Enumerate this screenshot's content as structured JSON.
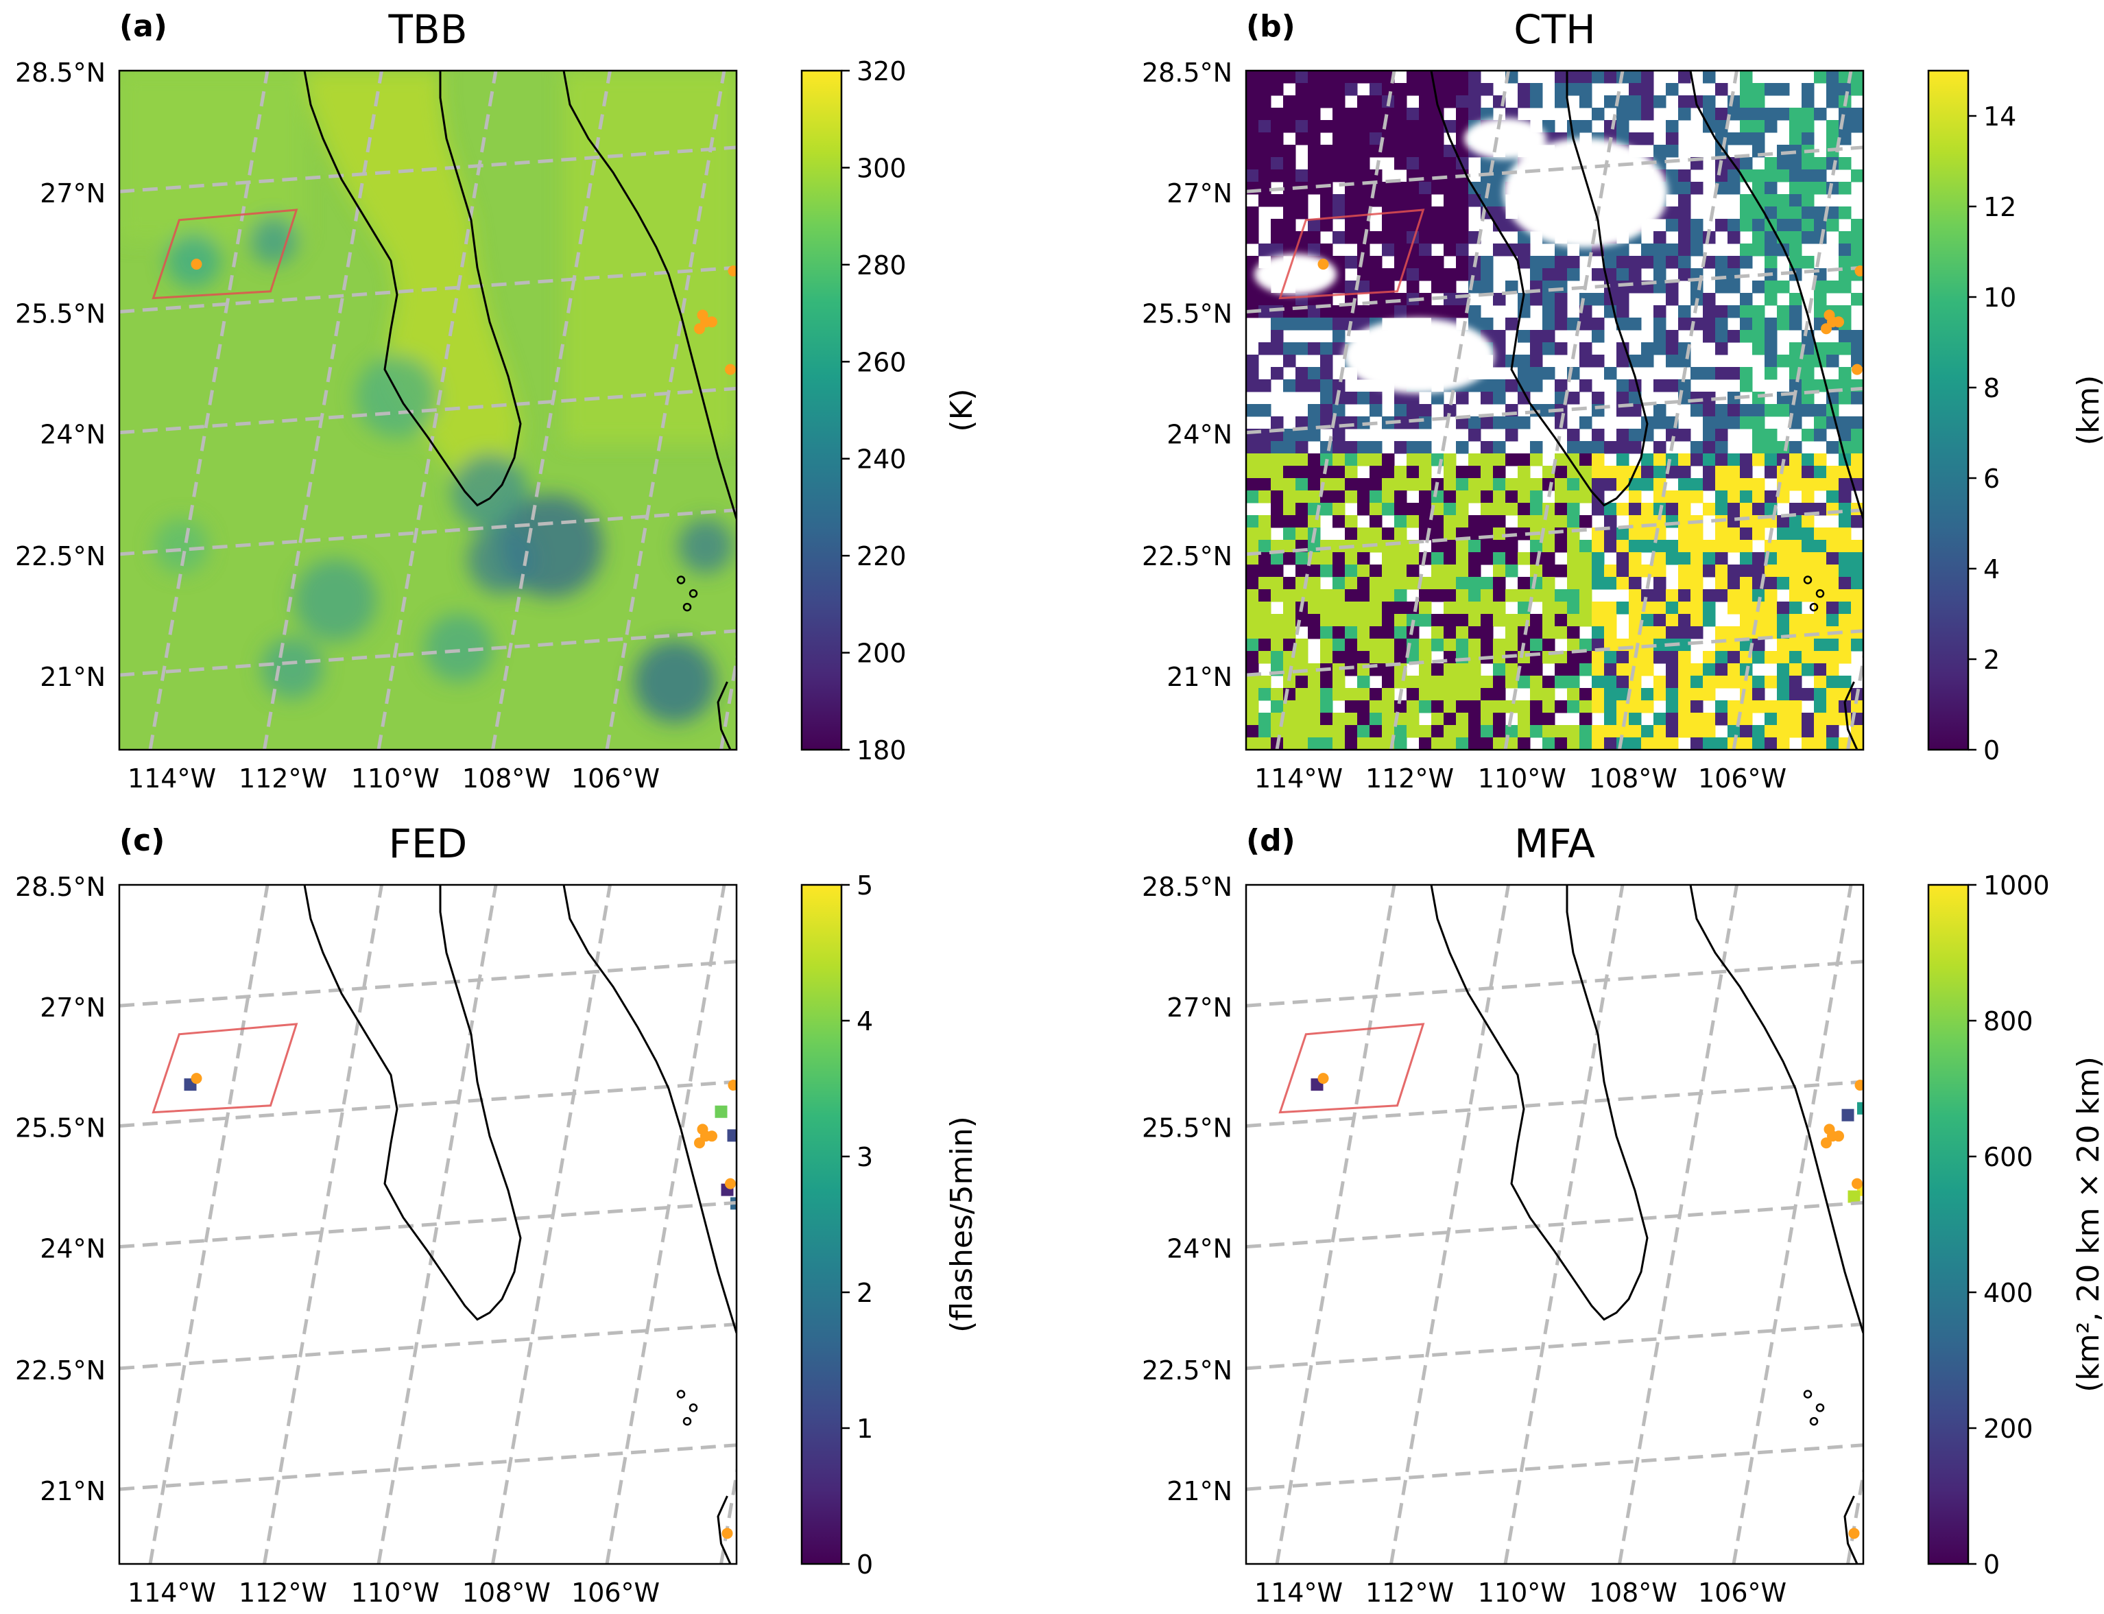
{
  "figure": {
    "panels": [
      {
        "id": "a",
        "label": "(a)",
        "title": "TBB",
        "cbar_unit": "(K)",
        "cbar_ticks": [
          "180",
          "200",
          "220",
          "240",
          "260",
          "280",
          "300",
          "320"
        ],
        "style": "tbb"
      },
      {
        "id": "b",
        "label": "(b)",
        "title": "CTH",
        "cbar_unit": "(km)",
        "cbar_ticks": [
          "0",
          "2",
          "4",
          "6",
          "8",
          "10",
          "12",
          "14"
        ],
        "style": "cth"
      },
      {
        "id": "c",
        "label": "(c)",
        "title": "FED",
        "cbar_unit": "(flashes/5min)",
        "cbar_ticks": [
          "0",
          "1",
          "2",
          "3",
          "4",
          "5"
        ],
        "style": "fed"
      },
      {
        "id": "d",
        "label": "(d)",
        "title": "MFA",
        "cbar_unit": "(km², 20 km × 20 km)",
        "cbar_ticks": [
          "0",
          "200",
          "400",
          "600",
          "800",
          "1000"
        ],
        "style": "mfa"
      }
    ],
    "lat_labels": [
      "28.5°N",
      "27°N",
      "25.5°N",
      "24°N",
      "22.5°N",
      "21°N"
    ],
    "lon_labels": [
      "114°W",
      "112°W",
      "110°W",
      "108°W",
      "106°W"
    ],
    "colors": {
      "viridis": [
        "#440154",
        "#482878",
        "#3e4989",
        "#31688e",
        "#26828e",
        "#1f9e89",
        "#35b779",
        "#6ece58",
        "#b5de2b",
        "#fde725"
      ],
      "box": "#e05050",
      "points": "#ff9f1c",
      "grid": "#bbbbbb"
    }
  },
  "chart_data": [
    {
      "type": "heatmap",
      "panel": "a",
      "title": "TBB",
      "colorbar_label": "(K)",
      "colorbar_range": [
        180,
        320
      ],
      "xlabel": "",
      "ylabel": "",
      "x_ticks": [
        "114°W",
        "112°W",
        "110°W",
        "108°W",
        "106°W"
      ],
      "y_ticks": [
        "28.5°N",
        "27°N",
        "25.5°N",
        "24°N",
        "22.5°N",
        "21°N"
      ],
      "extent": {
        "lon": [
          -114.5,
          -105.4
        ],
        "lat": [
          20,
          28.5
        ]
      },
      "grid": true
    },
    {
      "type": "heatmap",
      "panel": "b",
      "title": "CTH",
      "colorbar_label": "(km)",
      "colorbar_range": [
        0,
        15
      ],
      "xlabel": "",
      "ylabel": "",
      "x_ticks": [
        "114°W",
        "112°W",
        "110°W",
        "108°W",
        "106°W"
      ],
      "y_ticks": [
        "28.5°N",
        "27°N",
        "25.5°N",
        "24°N",
        "22.5°N",
        "21°N"
      ],
      "extent": {
        "lon": [
          -114.5,
          -105.4
        ],
        "lat": [
          20,
          28.5
        ]
      },
      "grid": true
    },
    {
      "type": "heatmap",
      "panel": "c",
      "title": "FED",
      "colorbar_label": "(flashes/5min)",
      "colorbar_range": [
        0,
        5
      ],
      "xlabel": "",
      "ylabel": "",
      "x_ticks": [
        "114°W",
        "112°W",
        "110°W",
        "108°W",
        "106°W"
      ],
      "y_ticks": [
        "28.5°N",
        "27°N",
        "25.5°N",
        "24°N",
        "22.5°N",
        "21°N"
      ],
      "extent": {
        "lon": [
          -114.5,
          -105.4
        ],
        "lat": [
          20,
          28.5
        ]
      },
      "grid": true
    },
    {
      "type": "heatmap",
      "panel": "d",
      "title": "MFA",
      "colorbar_label": "(km², 20 km × 20 km)",
      "colorbar_range": [
        0,
        1000
      ],
      "xlabel": "",
      "ylabel": "",
      "x_ticks": [
        "114°W",
        "112°W",
        "110°W",
        "108°W",
        "106°W"
      ],
      "y_ticks": [
        "28.5°N",
        "27°N",
        "25.5°N",
        "24°N",
        "22.5°N",
        "21°N"
      ],
      "extent": {
        "lon": [
          -114.5,
          -105.4
        ],
        "lat": [
          20,
          28.5
        ]
      },
      "grid": true
    }
  ]
}
